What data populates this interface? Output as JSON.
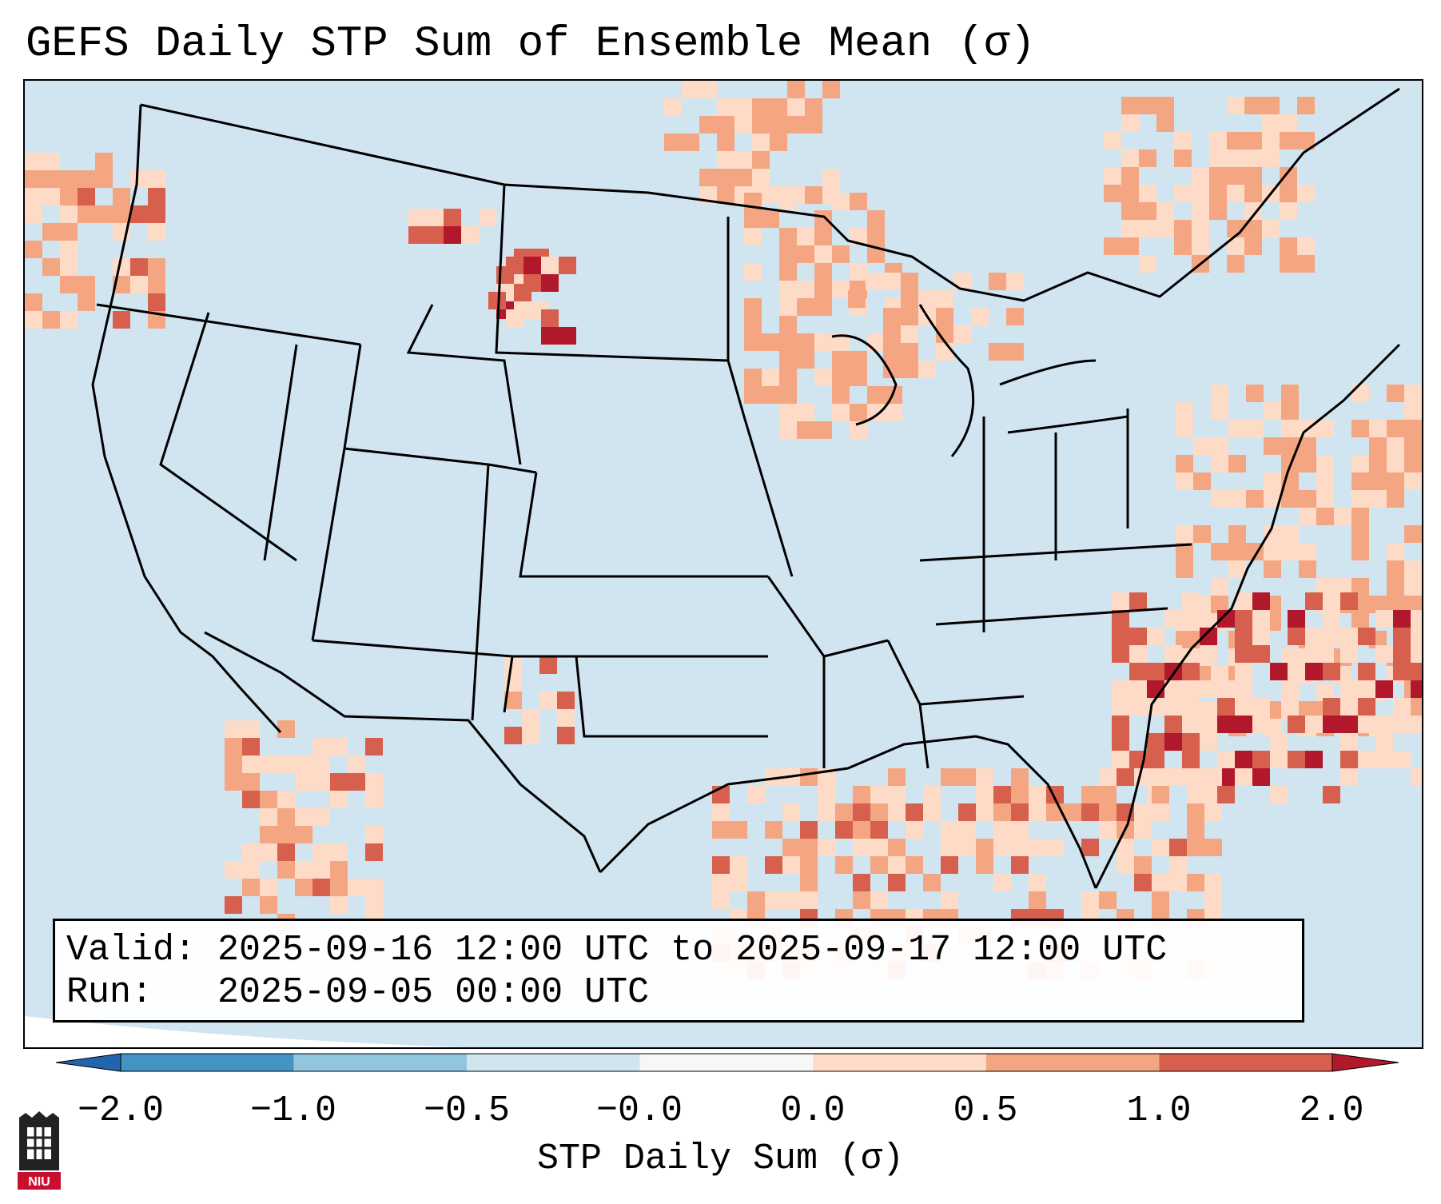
{
  "title": "GEFS Daily STP Sum of Ensemble Mean (σ)",
  "map": {
    "region": "CONUS",
    "background_color": "#d1e5f0",
    "border_color": "#000000"
  },
  "info_box": {
    "valid_line": "Valid: 2025-09-16 12:00 UTC to 2025-09-17 12:00 UTC",
    "run_line": "Run:   2025-09-05 00:00 UTC"
  },
  "colorbar": {
    "label": "STP Daily Sum (σ)",
    "ticks": [
      "−2.0",
      "−1.0",
      "−0.5",
      "−0.0",
      "0.0",
      "0.5",
      "1.0",
      "2.0"
    ],
    "colors": [
      "#2166ac",
      "#4393c3",
      "#92c5de",
      "#d1e5f0",
      "#f7f7f7",
      "#fddbc7",
      "#f4a582",
      "#d6604d",
      "#b2182b"
    ],
    "extend": "both"
  },
  "logo": {
    "text": "NIU",
    "icon": "niu-castle-logo"
  },
  "anomaly_clusters": [
    {
      "area": "pacific-northwest-offshore",
      "level": 1.0
    },
    {
      "area": "montana-east",
      "level": 2.0
    },
    {
      "area": "north-dakota",
      "level": 0.5
    },
    {
      "area": "south-dakota-west",
      "level": 2.0
    },
    {
      "area": "minnesota",
      "level": 0.5
    },
    {
      "area": "ontario",
      "level": 0.5
    },
    {
      "area": "quebec",
      "level": 0.5
    },
    {
      "area": "west-atlantic-offshore",
      "level": 0.5
    },
    {
      "area": "southeast-atlantic",
      "level": 2.0
    },
    {
      "area": "gulf-of-mexico",
      "level": 1.0
    },
    {
      "area": "west-texas",
      "level": 1.0
    },
    {
      "area": "mexico-west-coast",
      "level": 1.0
    }
  ]
}
